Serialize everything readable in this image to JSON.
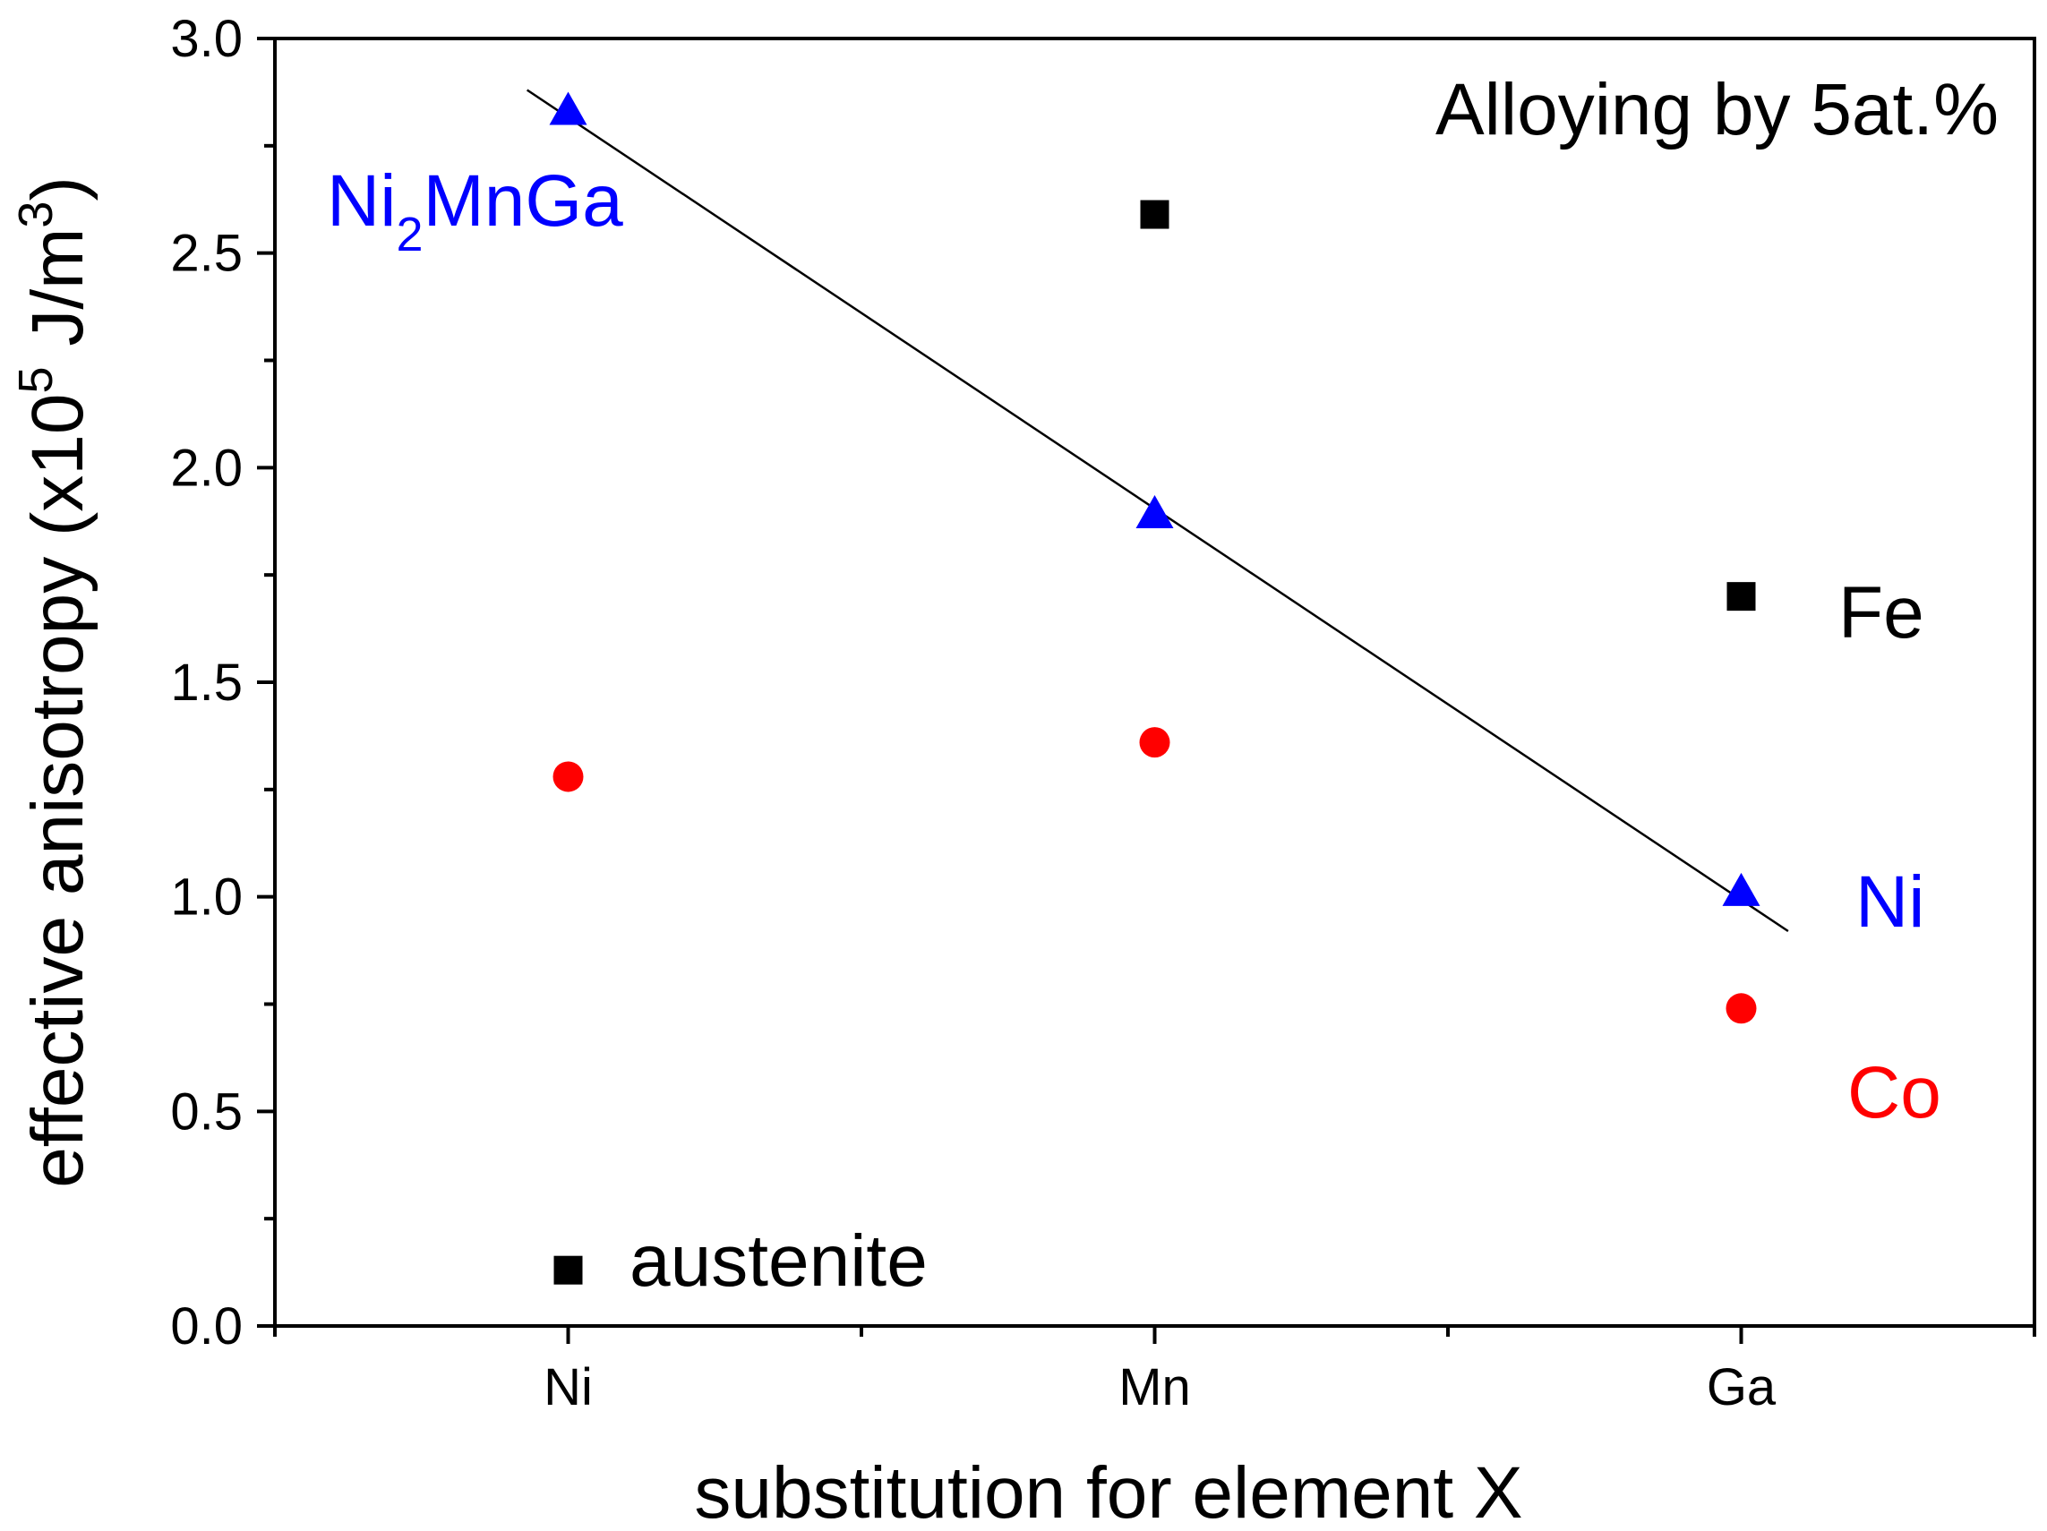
{
  "chart_data": {
    "type": "scatter",
    "title": "",
    "xlabel": "substitution for element X",
    "ylabel": {
      "main": "effective anisotropy (x10",
      "exp": "5",
      "unit": " J/m",
      "unit_exp": "3",
      "close": ")"
    },
    "categories": [
      "Ni",
      "Mn",
      "Ga"
    ],
    "xlim": [
      -0.5,
      2.5
    ],
    "ylim": [
      0.0,
      3.0
    ],
    "yticks": [
      "0.0",
      "0.5",
      "1.0",
      "1.5",
      "2.0",
      "2.5",
      "3.0"
    ],
    "grid": false,
    "series": [
      {
        "name": "Fe",
        "marker": "square",
        "color": "#000000",
        "x": [
          0,
          1,
          2
        ],
        "values": [
          0.13,
          2.59,
          1.7
        ]
      },
      {
        "name": "Co",
        "marker": "circle",
        "color": "#ff0000",
        "x": [
          0,
          1,
          2
        ],
        "values": [
          1.28,
          1.36,
          0.74
        ]
      },
      {
        "name": "Ni",
        "marker": "triangle",
        "color": "#0000ff",
        "x": [
          0,
          1,
          2
        ],
        "values": [
          2.83,
          1.89,
          1.01
        ]
      }
    ],
    "fit_line": {
      "color": "#000000",
      "x": [
        -0.07,
        2.08
      ],
      "y": [
        2.88,
        0.92
      ]
    },
    "annotations": {
      "title_note": {
        "text": "Alloying by 5at.%",
        "color": "#000000"
      },
      "compound": {
        "text1": "Ni",
        "sub": "2",
        "text2": "MnGa",
        "color": "#0000ff"
      },
      "austenite": {
        "text": "austenite",
        "color": "#000000"
      },
      "fe": {
        "text": "Fe",
        "color": "#000000"
      },
      "ni": {
        "text": "Ni",
        "color": "#0000ff"
      },
      "co": {
        "text": "Co",
        "color": "#ff0000"
      }
    }
  }
}
